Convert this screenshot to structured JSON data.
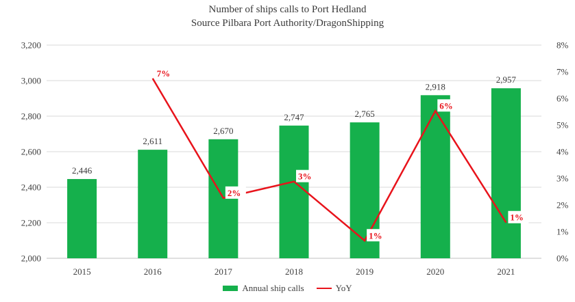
{
  "colors": {
    "bar": "#15b04c",
    "line": "#e8131b",
    "grid": "#d9d9d9",
    "axis": "#bfbfbf"
  },
  "chart_data": {
    "type": "bar",
    "title": "Number of ships calls to Port Hedland",
    "subtitle": "Source Pilbara Port Authority/DragonShipping",
    "categories": [
      "2015",
      "2016",
      "2017",
      "2018",
      "2019",
      "2020",
      "2021"
    ],
    "series": [
      {
        "name": "Annual ship calls",
        "type": "bar",
        "axis": "left",
        "values": [
          2446,
          2611,
          2670,
          2747,
          2765,
          2918,
          2957
        ],
        "labels": [
          "2,446",
          "2,611",
          "2,670",
          "2,747",
          "2,765",
          "2,918",
          "2,957"
        ]
      },
      {
        "name": "YoY",
        "type": "line",
        "axis": "right",
        "values": [
          null,
          6.75,
          2.26,
          2.88,
          0.66,
          5.53,
          1.34
        ],
        "labels": [
          "",
          "7%",
          "2%",
          "3%",
          "1%",
          "6%",
          "1%"
        ]
      }
    ],
    "y_left": {
      "lim": [
        2000,
        3200
      ],
      "ticks": [
        2000,
        2200,
        2400,
        2600,
        2800,
        3000,
        3200
      ],
      "tick_labels": [
        "2,000",
        "2,200",
        "2,400",
        "2,600",
        "2,800",
        "3,000",
        "3,200"
      ]
    },
    "y_right": {
      "lim": [
        0,
        8
      ],
      "ticks": [
        0,
        1,
        2,
        3,
        4,
        5,
        6,
        7,
        8
      ],
      "tick_labels": [
        "0%",
        "1%",
        "2%",
        "3%",
        "4%",
        "5%",
        "6%",
        "7%",
        "8%"
      ]
    },
    "grid": true,
    "legend": "bottom"
  }
}
